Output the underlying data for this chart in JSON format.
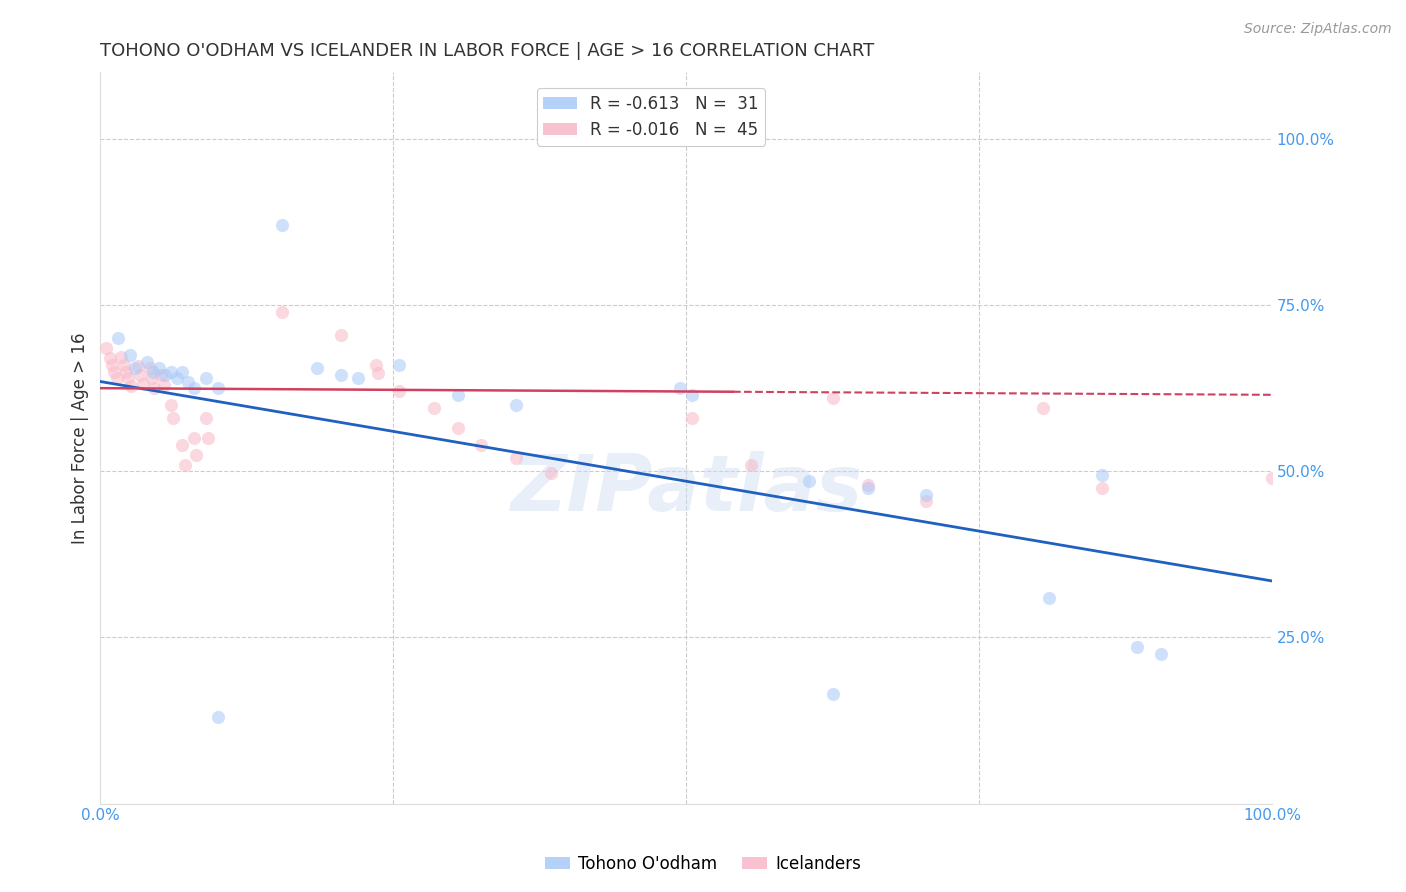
{
  "title": "TOHONO O'ODHAM VS ICELANDER IN LABOR FORCE | AGE > 16 CORRELATION CHART",
  "source": "Source: ZipAtlas.com",
  "ylabel": "In Labor Force | Age > 16",
  "xlim": [
    0.0,
    1.0
  ],
  "ylim": [
    0.0,
    1.1
  ],
  "blue_scatter": [
    [
      0.015,
      0.7
    ],
    [
      0.025,
      0.675
    ],
    [
      0.03,
      0.655
    ],
    [
      0.04,
      0.665
    ],
    [
      0.045,
      0.65
    ],
    [
      0.05,
      0.655
    ],
    [
      0.055,
      0.645
    ],
    [
      0.06,
      0.65
    ],
    [
      0.065,
      0.64
    ],
    [
      0.07,
      0.65
    ],
    [
      0.075,
      0.635
    ],
    [
      0.08,
      0.625
    ],
    [
      0.09,
      0.64
    ],
    [
      0.1,
      0.625
    ],
    [
      0.155,
      0.87
    ],
    [
      0.185,
      0.655
    ],
    [
      0.205,
      0.645
    ],
    [
      0.22,
      0.64
    ],
    [
      0.255,
      0.66
    ],
    [
      0.1,
      0.13
    ],
    [
      0.305,
      0.615
    ],
    [
      0.355,
      0.6
    ],
    [
      0.495,
      0.625
    ],
    [
      0.505,
      0.615
    ],
    [
      0.605,
      0.485
    ],
    [
      0.655,
      0.475
    ],
    [
      0.705,
      0.465
    ],
    [
      0.81,
      0.31
    ],
    [
      0.855,
      0.495
    ],
    [
      0.885,
      0.235
    ],
    [
      0.905,
      0.225
    ],
    [
      0.625,
      0.165
    ]
  ],
  "pink_scatter": [
    [
      0.005,
      0.685
    ],
    [
      0.008,
      0.67
    ],
    [
      0.01,
      0.66
    ],
    [
      0.012,
      0.65
    ],
    [
      0.014,
      0.64
    ],
    [
      0.018,
      0.672
    ],
    [
      0.02,
      0.66
    ],
    [
      0.022,
      0.65
    ],
    [
      0.024,
      0.64
    ],
    [
      0.026,
      0.628
    ],
    [
      0.032,
      0.658
    ],
    [
      0.034,
      0.645
    ],
    [
      0.036,
      0.632
    ],
    [
      0.042,
      0.655
    ],
    [
      0.044,
      0.64
    ],
    [
      0.046,
      0.625
    ],
    [
      0.052,
      0.645
    ],
    [
      0.054,
      0.63
    ],
    [
      0.06,
      0.6
    ],
    [
      0.062,
      0.58
    ],
    [
      0.07,
      0.54
    ],
    [
      0.072,
      0.51
    ],
    [
      0.08,
      0.55
    ],
    [
      0.082,
      0.525
    ],
    [
      0.09,
      0.58
    ],
    [
      0.092,
      0.55
    ],
    [
      0.155,
      0.74
    ],
    [
      0.205,
      0.705
    ],
    [
      0.235,
      0.66
    ],
    [
      0.237,
      0.648
    ],
    [
      0.255,
      0.62
    ],
    [
      0.285,
      0.595
    ],
    [
      0.305,
      0.565
    ],
    [
      0.325,
      0.54
    ],
    [
      0.355,
      0.52
    ],
    [
      0.385,
      0.498
    ],
    [
      0.505,
      0.58
    ],
    [
      0.555,
      0.51
    ],
    [
      0.625,
      0.61
    ],
    [
      0.655,
      0.48
    ],
    [
      0.705,
      0.455
    ],
    [
      0.805,
      0.595
    ],
    [
      0.855,
      0.475
    ],
    [
      1.0,
      0.49
    ]
  ],
  "blue_line": {
    "x0": 0.0,
    "y0": 0.635,
    "x1": 1.0,
    "y1": 0.335
  },
  "pink_line": {
    "x0": 0.0,
    "y0": 0.625,
    "x1": 1.0,
    "y1": 0.615
  },
  "pink_line_solid_end": 0.54,
  "watermark": "ZIPatlas",
  "background_color": "#ffffff",
  "grid_color": "#cccccc",
  "title_color": "#333333",
  "blue_color": "#a8c8f8",
  "pink_color": "#f8b8c8",
  "blue_line_color": "#2060c0",
  "pink_line_color": "#d04060",
  "tick_color": "#4499ee",
  "marker_size": 90,
  "marker_alpha": 0.55,
  "title_fontsize": 13,
  "label_fontsize": 12,
  "tick_fontsize": 11,
  "source_fontsize": 10
}
